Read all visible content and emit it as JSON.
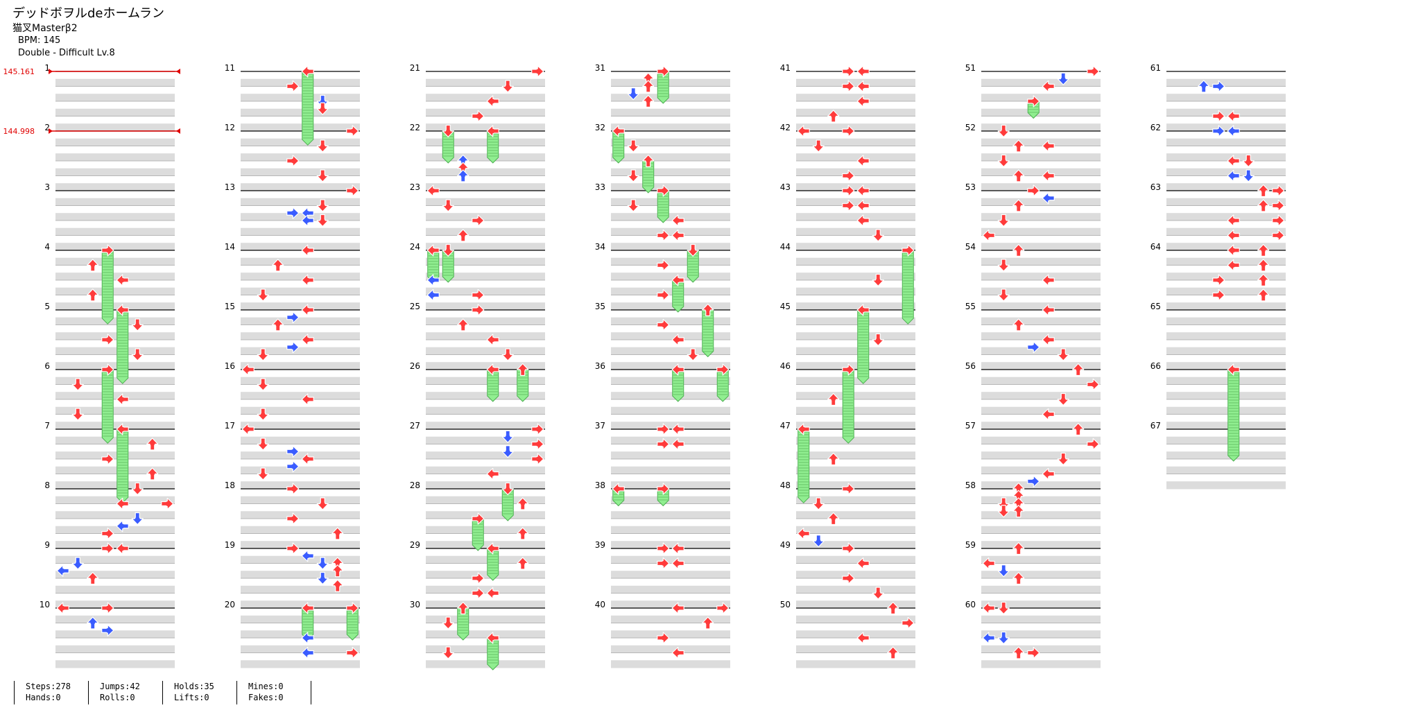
{
  "song": {
    "title": "デッドボヲルdeホームラン",
    "artist": "猫叉Masterβ2",
    "bpm_line": "BPM: 145",
    "difficulty_line": "Double - Difficult Lv.8"
  },
  "bpm_changes": [
    {
      "measure": 1,
      "label": "145.161"
    },
    {
      "measure": 2,
      "label": "144.998"
    }
  ],
  "colors": {
    "red_arrow": "#ff3b3b",
    "blue_arrow": "#3a5cff",
    "hold_green": "#90ee90",
    "row_gray": "#dcdcdc",
    "bpm_red": "#e00000"
  },
  "measure_labels": [
    "1",
    "2",
    "3",
    "4",
    "5",
    "6",
    "7",
    "8",
    "9",
    "10",
    "11",
    "12",
    "13",
    "14",
    "15",
    "16",
    "17",
    "18",
    "19",
    "20",
    "21",
    "22",
    "23",
    "24",
    "25",
    "26",
    "27",
    "28",
    "29",
    "30",
    "31",
    "32",
    "33",
    "34",
    "35",
    "36",
    "37",
    "38",
    "39",
    "40",
    "41",
    "42",
    "43",
    "44",
    "45",
    "46",
    "47",
    "48",
    "49",
    "50",
    "51",
    "52",
    "53",
    "54",
    "55",
    "56",
    "57",
    "58",
    "59",
    "60",
    "61",
    "62",
    "63",
    "64",
    "65",
    "66",
    "67"
  ],
  "notes": [
    {
      "m": 4,
      "b": 0,
      "l": 3,
      "h": 1.2
    },
    {
      "m": 4,
      "b": 0.5,
      "l": 2
    },
    {
      "m": 4,
      "b": 1,
      "l": 4
    },
    {
      "m": 4,
      "b": 1.5,
      "l": 2
    },
    {
      "m": 5,
      "b": 0,
      "l": 4,
      "h": 1.2
    },
    {
      "m": 5,
      "b": 0.5,
      "l": 5
    },
    {
      "m": 5,
      "b": 1,
      "l": 3
    },
    {
      "m": 5,
      "b": 1.5,
      "l": 5
    },
    {
      "m": 6,
      "b": 0,
      "l": 3,
      "h": 1.2
    },
    {
      "m": 6,
      "b": 0.5,
      "l": 1
    },
    {
      "m": 6,
      "b": 1,
      "l": 4
    },
    {
      "m": 6,
      "b": 1.5,
      "l": 1
    },
    {
      "m": 7,
      "b": 0,
      "l": 4,
      "h": 1.2
    },
    {
      "m": 7,
      "b": 0.5,
      "l": 6
    },
    {
      "m": 7,
      "b": 1,
      "l": 3
    },
    {
      "m": 7,
      "b": 1.5,
      "l": 6
    },
    {
      "m": 8,
      "b": 0,
      "l": 5
    },
    {
      "m": 8,
      "b": 0.5,
      "l": 4
    },
    {
      "m": 8,
      "b": 0.5,
      "l": 7
    },
    {
      "m": 8,
      "b": 1,
      "l": 5,
      "c": "b"
    },
    {
      "m": 8,
      "b": 1.25,
      "l": 4,
      "c": "b"
    },
    {
      "m": 8,
      "b": 1.5,
      "l": 3
    },
    {
      "m": 9,
      "b": 0,
      "l": 3
    },
    {
      "m": 9,
      "b": 0,
      "l": 4
    },
    {
      "m": 9,
      "b": 0.5,
      "l": 1,
      "c": "b"
    },
    {
      "m": 9,
      "b": 0.75,
      "l": 0,
      "c": "b"
    },
    {
      "m": 9,
      "b": 1,
      "l": 2
    },
    {
      "m": 10,
      "b": 0,
      "l": 0
    },
    {
      "m": 10,
      "b": 0,
      "l": 3
    },
    {
      "m": 10,
      "b": 0.5,
      "l": 2,
      "c": "b"
    },
    {
      "m": 10,
      "b": 0.75,
      "l": 3,
      "c": "b"
    },
    {
      "m": 11,
      "b": 0,
      "l": 4,
      "h": 1.2
    },
    {
      "m": 11,
      "b": 0.5,
      "l": 3
    },
    {
      "m": 11,
      "b": 1,
      "l": 5,
      "c": "b"
    },
    {
      "m": 11,
      "b": 1.25,
      "l": 5
    },
    {
      "m": 12,
      "b": 0,
      "l": 7
    },
    {
      "m": 12,
      "b": 0.5,
      "l": 5
    },
    {
      "m": 12,
      "b": 1,
      "l": 3
    },
    {
      "m": 12,
      "b": 1.5,
      "l": 5
    },
    {
      "m": 13,
      "b": 0,
      "l": 7
    },
    {
      "m": 13,
      "b": 0.5,
      "l": 5
    },
    {
      "m": 13,
      "b": 0.75,
      "l": 3,
      "c": "b"
    },
    {
      "m": 13,
      "b": 0.75,
      "l": 4,
      "c": "b"
    },
    {
      "m": 13,
      "b": 1,
      "l": 4,
      "c": "b"
    },
    {
      "m": 13,
      "b": 1,
      "l": 5
    },
    {
      "m": 14,
      "b": 0,
      "l": 4
    },
    {
      "m": 14,
      "b": 0.5,
      "l": 2
    },
    {
      "m": 14,
      "b": 1,
      "l": 4
    },
    {
      "m": 14,
      "b": 1.5,
      "l": 1
    },
    {
      "m": 15,
      "b": 0,
      "l": 4
    },
    {
      "m": 15,
      "b": 0.25,
      "l": 3,
      "c": "b"
    },
    {
      "m": 15,
      "b": 0.5,
      "l": 2
    },
    {
      "m": 15,
      "b": 1,
      "l": 4
    },
    {
      "m": 15,
      "b": 1.25,
      "l": 3,
      "c": "b"
    },
    {
      "m": 15,
      "b": 1.5,
      "l": 1
    },
    {
      "m": 16,
      "b": 0,
      "l": 0
    },
    {
      "m": 16,
      "b": 0.5,
      "l": 1
    },
    {
      "m": 16,
      "b": 1,
      "l": 4
    },
    {
      "m": 16,
      "b": 1.5,
      "l": 1
    },
    {
      "m": 17,
      "b": 0,
      "l": 0
    },
    {
      "m": 17,
      "b": 0.5,
      "l": 1
    },
    {
      "m": 17,
      "b": 0.75,
      "l": 3,
      "c": "b"
    },
    {
      "m": 17,
      "b": 1,
      "l": 4
    },
    {
      "m": 17,
      "b": 1.25,
      "l": 3,
      "c": "b"
    },
    {
      "m": 17,
      "b": 1.5,
      "l": 1
    },
    {
      "m": 18,
      "b": 0,
      "l": 3
    },
    {
      "m": 18,
      "b": 0.5,
      "l": 5
    },
    {
      "m": 18,
      "b": 1,
      "l": 3
    },
    {
      "m": 18,
      "b": 1.5,
      "l": 6
    },
    {
      "m": 19,
      "b": 0,
      "l": 3
    },
    {
      "m": 19,
      "b": 0.25,
      "l": 4,
      "c": "b"
    },
    {
      "m": 19,
      "b": 0.5,
      "l": 6
    },
    {
      "m": 19,
      "b": 0.5,
      "l": 5,
      "c": "b"
    },
    {
      "m": 19,
      "b": 0.75,
      "l": 6
    },
    {
      "m": 19,
      "b": 1,
      "l": 5,
      "c": "b"
    },
    {
      "m": 19,
      "b": 1.25,
      "l": 6
    },
    {
      "m": 20,
      "b": 0,
      "l": 4,
      "h": 0.5
    },
    {
      "m": 20,
      "b": 0,
      "l": 7,
      "h": 0.5
    },
    {
      "m": 20,
      "b": 1,
      "l": 4,
      "c": "b"
    },
    {
      "m": 20,
      "b": 1.5,
      "l": 4,
      "c": "b"
    },
    {
      "m": 20,
      "b": 1.5,
      "l": 7
    },
    {
      "m": 21,
      "b": 0,
      "l": 7
    },
    {
      "m": 21,
      "b": 0.5,
      "l": 5
    },
    {
      "m": 21,
      "b": 1,
      "l": 4
    },
    {
      "m": 21,
      "b": 1.5,
      "l": 3
    },
    {
      "m": 22,
      "b": 0,
      "l": 1,
      "h": 0.5
    },
    {
      "m": 22,
      "b": 0,
      "l": 4,
      "h": 0.5
    },
    {
      "m": 22,
      "b": 1,
      "l": 2,
      "c": "b"
    },
    {
      "m": 22,
      "b": 1.25,
      "l": 2
    },
    {
      "m": 22,
      "b": 1.5,
      "l": 2,
      "c": "b"
    },
    {
      "m": 23,
      "b": 0,
      "l": 0
    },
    {
      "m": 23,
      "b": 0.5,
      "l": 1
    },
    {
      "m": 23,
      "b": 1,
      "l": 3
    },
    {
      "m": 23,
      "b": 1.5,
      "l": 2
    },
    {
      "m": 24,
      "b": 0,
      "l": 0,
      "h": 0.5
    },
    {
      "m": 24,
      "b": 0,
      "l": 1,
      "h": 0.5
    },
    {
      "m": 24,
      "b": 1,
      "l": 0,
      "c": "b"
    },
    {
      "m": 24,
      "b": 1.5,
      "l": 0,
      "c": "b"
    },
    {
      "m": 24,
      "b": 1.5,
      "l": 3
    },
    {
      "m": 25,
      "b": 0,
      "l": 3
    },
    {
      "m": 25,
      "b": 0.5,
      "l": 2
    },
    {
      "m": 25,
      "b": 1,
      "l": 4
    },
    {
      "m": 25,
      "b": 1.5,
      "l": 5
    },
    {
      "m": 26,
      "b": 0,
      "l": 4,
      "h": 0.5
    },
    {
      "m": 26,
      "b": 0,
      "l": 6,
      "h": 0.5
    },
    {
      "m": 27,
      "b": 0,
      "l": 7
    },
    {
      "m": 27,
      "b": 0.25,
      "l": 5,
      "c": "b"
    },
    {
      "m": 27,
      "b": 0.5,
      "l": 7
    },
    {
      "m": 27,
      "b": 0.75,
      "l": 5,
      "c": "b"
    },
    {
      "m": 27,
      "b": 1,
      "l": 7
    },
    {
      "m": 27,
      "b": 1.5,
      "l": 4
    },
    {
      "m": 28,
      "b": 0,
      "l": 5,
      "h": 0.5
    },
    {
      "m": 28,
      "b": 0.5,
      "l": 6
    },
    {
      "m": 28,
      "b": 1,
      "l": 3,
      "h": 0.5
    },
    {
      "m": 28,
      "b": 1.5,
      "l": 6
    },
    {
      "m": 29,
      "b": 0,
      "l": 4,
      "h": 0.5
    },
    {
      "m": 29,
      "b": 0.5,
      "l": 6
    },
    {
      "m": 29,
      "b": 1,
      "l": 3
    },
    {
      "m": 29,
      "b": 1.5,
      "l": 3
    },
    {
      "m": 29,
      "b": 1.5,
      "l": 4
    },
    {
      "m": 30,
      "b": 0,
      "l": 2,
      "h": 0.5
    },
    {
      "m": 30,
      "b": 0.5,
      "l": 1
    },
    {
      "m": 30,
      "b": 1,
      "l": 4,
      "h": 0.5
    },
    {
      "m": 30,
      "b": 1.5,
      "l": 1
    },
    {
      "m": 31,
      "b": 0,
      "l": 3,
      "h": 0.5
    },
    {
      "m": 31,
      "b": 0.25,
      "l": 2
    },
    {
      "m": 31,
      "b": 0.5,
      "l": 2
    },
    {
      "m": 31,
      "b": 0.75,
      "l": 1,
      "c": "b"
    },
    {
      "m": 31,
      "b": 1,
      "l": 2
    },
    {
      "m": 32,
      "b": 0,
      "l": 0,
      "h": 0.5
    },
    {
      "m": 32,
      "b": 0.5,
      "l": 1
    },
    {
      "m": 32,
      "b": 1,
      "l": 2,
      "h": 0.5
    },
    {
      "m": 32,
      "b": 1.5,
      "l": 1
    },
    {
      "m": 33,
      "b": 0,
      "l": 3,
      "h": 0.5
    },
    {
      "m": 33,
      "b": 0.5,
      "l": 1
    },
    {
      "m": 33,
      "b": 1,
      "l": 4
    },
    {
      "m": 33,
      "b": 1.5,
      "l": 3
    },
    {
      "m": 33,
      "b": 1.5,
      "l": 4
    },
    {
      "m": 34,
      "b": 0,
      "l": 5,
      "h": 0.5
    },
    {
      "m": 34,
      "b": 0.5,
      "l": 3
    },
    {
      "m": 34,
      "b": 1,
      "l": 4,
      "h": 0.5
    },
    {
      "m": 34,
      "b": 1.5,
      "l": 3
    },
    {
      "m": 35,
      "b": 0,
      "l": 6,
      "h": 0.75
    },
    {
      "m": 35,
      "b": 0.5,
      "l": 3
    },
    {
      "m": 35,
      "b": 1,
      "l": 4
    },
    {
      "m": 35,
      "b": 1.5,
      "l": 5
    },
    {
      "m": 36,
      "b": 0,
      "l": 4,
      "h": 0.5
    },
    {
      "m": 36,
      "b": 0,
      "l": 7,
      "h": 0.5
    },
    {
      "m": 37,
      "b": 0,
      "l": 3
    },
    {
      "m": 37,
      "b": 0,
      "l": 4
    },
    {
      "m": 37,
      "b": 0.5,
      "l": 3
    },
    {
      "m": 37,
      "b": 0.5,
      "l": 4
    },
    {
      "m": 38,
      "b": 0,
      "l": 0,
      "h": 0.25
    },
    {
      "m": 38,
      "b": 0,
      "l": 3,
      "h": 0.25
    },
    {
      "m": 39,
      "b": 0,
      "l": 3
    },
    {
      "m": 39,
      "b": 0,
      "l": 4
    },
    {
      "m": 39,
      "b": 0.5,
      "l": 3
    },
    {
      "m": 39,
      "b": 0.5,
      "l": 4
    },
    {
      "m": 40,
      "b": 0,
      "l": 4
    },
    {
      "m": 40,
      "b": 0,
      "l": 7
    },
    {
      "m": 40,
      "b": 0.5,
      "l": 6
    },
    {
      "m": 40,
      "b": 1,
      "l": 3
    },
    {
      "m": 40,
      "b": 1.5,
      "l": 4
    },
    {
      "m": 41,
      "b": 0,
      "l": 3
    },
    {
      "m": 41,
      "b": 0,
      "l": 4
    },
    {
      "m": 41,
      "b": 0.5,
      "l": 3
    },
    {
      "m": 41,
      "b": 0.5,
      "l": 4
    },
    {
      "m": 41,
      "b": 1,
      "l": 4
    },
    {
      "m": 41,
      "b": 1.5,
      "l": 2
    },
    {
      "m": 42,
      "b": 0,
      "l": 0
    },
    {
      "m": 42,
      "b": 0,
      "l": 3
    },
    {
      "m": 42,
      "b": 0.5,
      "l": 1
    },
    {
      "m": 42,
      "b": 1,
      "l": 4
    },
    {
      "m": 42,
      "b": 1.5,
      "l": 3
    },
    {
      "m": 43,
      "b": 0,
      "l": 3
    },
    {
      "m": 43,
      "b": 0,
      "l": 4
    },
    {
      "m": 43,
      "b": 0.5,
      "l": 3
    },
    {
      "m": 43,
      "b": 0.5,
      "l": 4
    },
    {
      "m": 43,
      "b": 1,
      "l": 4
    },
    {
      "m": 43,
      "b": 1.5,
      "l": 5
    },
    {
      "m": 44,
      "b": 0,
      "l": 7,
      "h": 1.2
    },
    {
      "m": 44,
      "b": 1,
      "l": 5
    },
    {
      "m": 45,
      "b": 0,
      "l": 4,
      "h": 1.2
    },
    {
      "m": 45,
      "b": 1,
      "l": 5
    },
    {
      "m": 46,
      "b": 0,
      "l": 3,
      "h": 1.2
    },
    {
      "m": 46,
      "b": 1,
      "l": 2
    },
    {
      "m": 47,
      "b": 0,
      "l": 0,
      "h": 1.2
    },
    {
      "m": 47,
      "b": 1,
      "l": 2
    },
    {
      "m": 48,
      "b": 0,
      "l": 3
    },
    {
      "m": 48,
      "b": 0.5,
      "l": 1
    },
    {
      "m": 48,
      "b": 1,
      "l": 2
    },
    {
      "m": 48,
      "b": 1.5,
      "l": 0
    },
    {
      "m": 48,
      "b": 1.75,
      "l": 1,
      "c": "b"
    },
    {
      "m": 49,
      "b": 0,
      "l": 3
    },
    {
      "m": 49,
      "b": 0.5,
      "l": 4
    },
    {
      "m": 49,
      "b": 1,
      "l": 3
    },
    {
      "m": 49,
      "b": 1.5,
      "l": 5
    },
    {
      "m": 50,
      "b": 0,
      "l": 6
    },
    {
      "m": 50,
      "b": 0.5,
      "l": 7
    },
    {
      "m": 50,
      "b": 1,
      "l": 4
    },
    {
      "m": 50,
      "b": 1.5,
      "l": 6
    },
    {
      "m": 51,
      "b": 0,
      "l": 7
    },
    {
      "m": 51,
      "b": 0.25,
      "l": 5,
      "c": "b"
    },
    {
      "m": 51,
      "b": 0.5,
      "l": 4
    },
    {
      "m": 51,
      "b": 1,
      "l": 3,
      "h": 0.25
    },
    {
      "m": 52,
      "b": 0,
      "l": 1
    },
    {
      "m": 52,
      "b": 0.5,
      "l": 2
    },
    {
      "m": 52,
      "b": 0.5,
      "l": 4
    },
    {
      "m": 52,
      "b": 1,
      "l": 1
    },
    {
      "m": 52,
      "b": 1.5,
      "l": 2
    },
    {
      "m": 52,
      "b": 1.5,
      "l": 4
    },
    {
      "m": 53,
      "b": 0,
      "l": 3
    },
    {
      "m": 53,
      "b": 0.25,
      "l": 4,
      "c": "b"
    },
    {
      "m": 53,
      "b": 0.5,
      "l": 2
    },
    {
      "m": 53,
      "b": 1,
      "l": 1
    },
    {
      "m": 53,
      "b": 1.5,
      "l": 0
    },
    {
      "m": 54,
      "b": 0,
      "l": 2
    },
    {
      "m": 54,
      "b": 0.5,
      "l": 1
    },
    {
      "m": 54,
      "b": 1,
      "l": 4
    },
    {
      "m": 54,
      "b": 1.5,
      "l": 1
    },
    {
      "m": 55,
      "b": 0,
      "l": 4
    },
    {
      "m": 55,
      "b": 0.5,
      "l": 2
    },
    {
      "m": 55,
      "b": 1,
      "l": 4
    },
    {
      "m": 55,
      "b": 1.25,
      "l": 3,
      "c": "b"
    },
    {
      "m": 55,
      "b": 1.5,
      "l": 5
    },
    {
      "m": 56,
      "b": 0,
      "l": 6
    },
    {
      "m": 56,
      "b": 0.5,
      "l": 7
    },
    {
      "m": 56,
      "b": 1,
      "l": 5
    },
    {
      "m": 56,
      "b": 1.5,
      "l": 4
    },
    {
      "m": 57,
      "b": 0,
      "l": 6
    },
    {
      "m": 57,
      "b": 0.5,
      "l": 7
    },
    {
      "m": 57,
      "b": 1,
      "l": 5
    },
    {
      "m": 57,
      "b": 1.5,
      "l": 4
    },
    {
      "m": 57,
      "b": 1.75,
      "l": 3,
      "c": "b"
    },
    {
      "m": 58,
      "b": 0,
      "l": 2
    },
    {
      "m": 58,
      "b": 0.25,
      "l": 2
    },
    {
      "m": 58,
      "b": 0.5,
      "l": 1
    },
    {
      "m": 58,
      "b": 0.5,
      "l": 2
    },
    {
      "m": 58,
      "b": 0.75,
      "l": 1
    },
    {
      "m": 58,
      "b": 0.75,
      "l": 2
    },
    {
      "m": 59,
      "b": 0,
      "l": 2
    },
    {
      "m": 59,
      "b": 0.5,
      "l": 0
    },
    {
      "m": 59,
      "b": 0.75,
      "l": 1,
      "c": "b"
    },
    {
      "m": 59,
      "b": 1,
      "l": 2
    },
    {
      "m": 60,
      "b": 0,
      "l": 0
    },
    {
      "m": 60,
      "b": 0,
      "l": 1
    },
    {
      "m": 60,
      "b": 1,
      "l": 0,
      "c": "b"
    },
    {
      "m": 60,
      "b": 1,
      "l": 1,
      "c": "b"
    },
    {
      "m": 60,
      "b": 1.5,
      "l": 2
    },
    {
      "m": 60,
      "b": 1.5,
      "l": 3
    },
    {
      "m": 61,
      "b": 0.5,
      "l": 2,
      "c": "b"
    },
    {
      "m": 61,
      "b": 0.5,
      "l": 3,
      "c": "b"
    },
    {
      "m": 61,
      "b": 1.5,
      "l": 3
    },
    {
      "m": 61,
      "b": 1.5,
      "l": 4
    },
    {
      "m": 62,
      "b": 0,
      "l": 3,
      "c": "b"
    },
    {
      "m": 62,
      "b": 0,
      "l": 4,
      "c": "b"
    },
    {
      "m": 62,
      "b": 1,
      "l": 4
    },
    {
      "m": 62,
      "b": 1,
      "l": 5
    },
    {
      "m": 62,
      "b": 1.5,
      "l": 4,
      "c": "b"
    },
    {
      "m": 62,
      "b": 1.5,
      "l": 5,
      "c": "b"
    },
    {
      "m": 63,
      "b": 0,
      "l": 6
    },
    {
      "m": 63,
      "b": 0,
      "l": 7
    },
    {
      "m": 63,
      "b": 0.5,
      "l": 6
    },
    {
      "m": 63,
      "b": 0.5,
      "l": 7
    },
    {
      "m": 63,
      "b": 1,
      "l": 4
    },
    {
      "m": 63,
      "b": 1,
      "l": 7
    },
    {
      "m": 63,
      "b": 1.5,
      "l": 4
    },
    {
      "m": 63,
      "b": 1.5,
      "l": 7
    },
    {
      "m": 64,
      "b": 0,
      "l": 4
    },
    {
      "m": 64,
      "b": 0,
      "l": 6
    },
    {
      "m": 64,
      "b": 0.5,
      "l": 4
    },
    {
      "m": 64,
      "b": 0.5,
      "l": 6
    },
    {
      "m": 64,
      "b": 1,
      "l": 3
    },
    {
      "m": 64,
      "b": 1,
      "l": 6
    },
    {
      "m": 64,
      "b": 1.5,
      "l": 3
    },
    {
      "m": 64,
      "b": 1.5,
      "l": 6
    },
    {
      "m": 66,
      "b": 0,
      "l": 4,
      "h": 1.5
    }
  ],
  "stats": [
    [
      "Steps:278",
      "Hands:0"
    ],
    [
      "Jumps:42",
      "Rolls:0"
    ],
    [
      "Holds:35",
      "Lifts:0"
    ],
    [
      "Mines:0",
      "Fakes:0"
    ]
  ]
}
